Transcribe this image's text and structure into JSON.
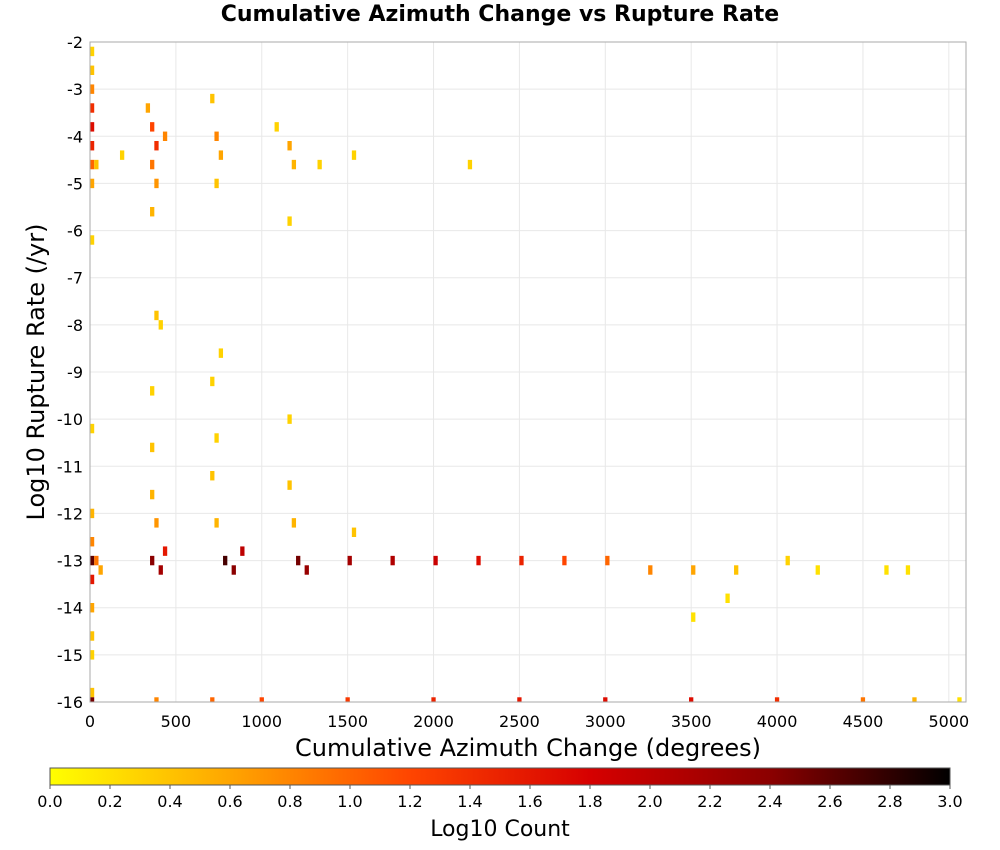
{
  "chart_data": {
    "type": "heatmap",
    "title": "Cumulative Azimuth Change vs Rupture Rate",
    "xlabel": "Cumulative Azimuth Change (degrees)",
    "ylabel": "Log10 Rupture Rate (/yr)",
    "xlim": [
      0,
      5100
    ],
    "ylim": [
      -16,
      -2
    ],
    "x_ticks": [
      "0",
      "500",
      "1000",
      "1500",
      "2000",
      "2500",
      "3000",
      "3500",
      "4000",
      "4500",
      "5000"
    ],
    "y_ticks": [
      "-2",
      "-3",
      "-4",
      "-5",
      "-6",
      "-7",
      "-8",
      "-9",
      "-10",
      "-11",
      "-12",
      "-13",
      "-14",
      "-15",
      "-16"
    ],
    "grid": true,
    "colorbar": {
      "label": "Log10 Count",
      "range": [
        0,
        3
      ],
      "ticks": [
        "0.0",
        "0.2",
        "0.4",
        "0.6",
        "0.8",
        "1.0",
        "1.2",
        "1.4",
        "1.6",
        "1.8",
        "2.0",
        "2.2",
        "2.4",
        "2.6",
        "2.8",
        "3.0"
      ],
      "colors": [
        "#ffff00",
        "#ffa500",
        "#ff4500",
        "#d60000",
        "#8b0000",
        "#000000"
      ]
    },
    "cell_size": {
      "x": 25,
      "y": 0.2
    },
    "cells": [
      {
        "x": 12,
        "y": -2.2,
        "v": 0.3
      },
      {
        "x": 12,
        "y": -2.6,
        "v": 0.4
      },
      {
        "x": 12,
        "y": -3.0,
        "v": 0.8
      },
      {
        "x": 12,
        "y": -3.4,
        "v": 1.4
      },
      {
        "x": 12,
        "y": -3.8,
        "v": 1.7
      },
      {
        "x": 12,
        "y": -4.2,
        "v": 1.5
      },
      {
        "x": 12,
        "y": -4.6,
        "v": 1.0
      },
      {
        "x": 12,
        "y": -5.0,
        "v": 0.6
      },
      {
        "x": 12,
        "y": -6.2,
        "v": 0.3
      },
      {
        "x": 12,
        "y": -10.2,
        "v": 0.3
      },
      {
        "x": 12,
        "y": -12.0,
        "v": 0.5
      },
      {
        "x": 12,
        "y": -12.6,
        "v": 0.8
      },
      {
        "x": 12,
        "y": -13.0,
        "v": 2.6
      },
      {
        "x": 12,
        "y": -13.4,
        "v": 1.6
      },
      {
        "x": 12,
        "y": -14.0,
        "v": 0.6
      },
      {
        "x": 12,
        "y": -14.6,
        "v": 0.4
      },
      {
        "x": 12,
        "y": -15.0,
        "v": 0.3
      },
      {
        "x": 12,
        "y": -15.8,
        "v": 0.4
      },
      {
        "x": 12,
        "y": -16.0,
        "v": 2.5
      },
      {
        "x": 37,
        "y": -4.6,
        "v": 0.4
      },
      {
        "x": 37,
        "y": -13.0,
        "v": 0.9
      },
      {
        "x": 62,
        "y": -13.2,
        "v": 0.6
      },
      {
        "x": 187,
        "y": -4.4,
        "v": 0.3
      },
      {
        "x": 337,
        "y": -3.4,
        "v": 0.6
      },
      {
        "x": 362,
        "y": -3.8,
        "v": 1.2
      },
      {
        "x": 387,
        "y": -4.2,
        "v": 1.4
      },
      {
        "x": 362,
        "y": -4.6,
        "v": 0.9
      },
      {
        "x": 387,
        "y": -5.0,
        "v": 0.7
      },
      {
        "x": 362,
        "y": -5.6,
        "v": 0.5
      },
      {
        "x": 437,
        "y": -4.0,
        "v": 0.8
      },
      {
        "x": 387,
        "y": -7.8,
        "v": 0.4
      },
      {
        "x": 412,
        "y": -8.0,
        "v": 0.3
      },
      {
        "x": 362,
        "y": -9.4,
        "v": 0.3
      },
      {
        "x": 362,
        "y": -10.6,
        "v": 0.4
      },
      {
        "x": 362,
        "y": -11.6,
        "v": 0.5
      },
      {
        "x": 387,
        "y": -12.2,
        "v": 0.7
      },
      {
        "x": 362,
        "y": -13.0,
        "v": 2.4
      },
      {
        "x": 412,
        "y": -13.2,
        "v": 2.2
      },
      {
        "x": 437,
        "y": -12.8,
        "v": 1.6
      },
      {
        "x": 712,
        "y": -3.2,
        "v": 0.4
      },
      {
        "x": 737,
        "y": -4.0,
        "v": 0.8
      },
      {
        "x": 762,
        "y": -4.4,
        "v": 0.6
      },
      {
        "x": 737,
        "y": -5.0,
        "v": 0.4
      },
      {
        "x": 762,
        "y": -8.6,
        "v": 0.3
      },
      {
        "x": 712,
        "y": -9.2,
        "v": 0.3
      },
      {
        "x": 737,
        "y": -10.4,
        "v": 0.3
      },
      {
        "x": 712,
        "y": -11.2,
        "v": 0.4
      },
      {
        "x": 737,
        "y": -12.2,
        "v": 0.5
      },
      {
        "x": 787,
        "y": -13.0,
        "v": 2.7
      },
      {
        "x": 837,
        "y": -13.2,
        "v": 2.4
      },
      {
        "x": 887,
        "y": -12.8,
        "v": 2.0
      },
      {
        "x": 1087,
        "y": -3.8,
        "v": 0.3
      },
      {
        "x": 1162,
        "y": -4.2,
        "v": 0.6
      },
      {
        "x": 1187,
        "y": -4.6,
        "v": 0.5
      },
      {
        "x": 1162,
        "y": -5.8,
        "v": 0.3
      },
      {
        "x": 1162,
        "y": -10.0,
        "v": 0.3
      },
      {
        "x": 1162,
        "y": -11.4,
        "v": 0.4
      },
      {
        "x": 1187,
        "y": -12.2,
        "v": 0.5
      },
      {
        "x": 1212,
        "y": -13.0,
        "v": 2.5
      },
      {
        "x": 1262,
        "y": -13.2,
        "v": 2.3
      },
      {
        "x": 1337,
        "y": -4.6,
        "v": 0.3
      },
      {
        "x": 1537,
        "y": -4.4,
        "v": 0.3
      },
      {
        "x": 2212,
        "y": -4.6,
        "v": 0.3
      },
      {
        "x": 1537,
        "y": -12.4,
        "v": 0.4
      },
      {
        "x": 1512,
        "y": -13.0,
        "v": 2.2
      },
      {
        "x": 1762,
        "y": -13.0,
        "v": 2.1
      },
      {
        "x": 2012,
        "y": -13.0,
        "v": 1.9
      },
      {
        "x": 2262,
        "y": -13.0,
        "v": 1.7
      },
      {
        "x": 2512,
        "y": -13.0,
        "v": 1.5
      },
      {
        "x": 2762,
        "y": -13.0,
        "v": 1.2
      },
      {
        "x": 3012,
        "y": -13.0,
        "v": 1.0
      },
      {
        "x": 3262,
        "y": -13.2,
        "v": 0.8
      },
      {
        "x": 3512,
        "y": -13.2,
        "v": 0.6
      },
      {
        "x": 3762,
        "y": -13.2,
        "v": 0.4
      },
      {
        "x": 4062,
        "y": -13.0,
        "v": 0.3
      },
      {
        "x": 4237,
        "y": -13.2,
        "v": 0.2
      },
      {
        "x": 4637,
        "y": -13.2,
        "v": 0.2
      },
      {
        "x": 4762,
        "y": -13.2,
        "v": 0.2
      },
      {
        "x": 3512,
        "y": -14.2,
        "v": 0.2
      },
      {
        "x": 3712,
        "y": -13.8,
        "v": 0.2
      },
      {
        "x": 387,
        "y": -16.0,
        "v": 0.8
      },
      {
        "x": 712,
        "y": -16.0,
        "v": 1.0
      },
      {
        "x": 1000,
        "y": -16.0,
        "v": 1.2
      },
      {
        "x": 1500,
        "y": -16.0,
        "v": 1.3
      },
      {
        "x": 2000,
        "y": -16.0,
        "v": 1.5
      },
      {
        "x": 2500,
        "y": -16.0,
        "v": 1.6
      },
      {
        "x": 3000,
        "y": -16.0,
        "v": 1.7
      },
      {
        "x": 3500,
        "y": -16.0,
        "v": 1.7
      },
      {
        "x": 4000,
        "y": -16.0,
        "v": 1.4
      },
      {
        "x": 4500,
        "y": -16.0,
        "v": 0.9
      },
      {
        "x": 4800,
        "y": -16.0,
        "v": 0.5
      },
      {
        "x": 5062,
        "y": -16.0,
        "v": 0.2
      }
    ]
  }
}
